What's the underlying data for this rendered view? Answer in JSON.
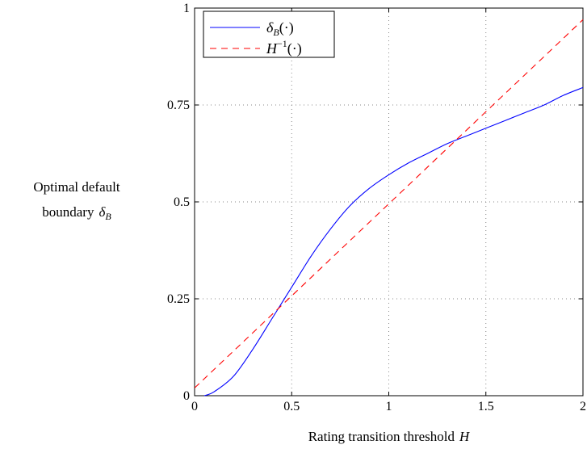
{
  "chart_data": {
    "type": "line",
    "xlabel_text": "Rating transition threshold",
    "xlabel_var": "H",
    "ylabel_line1": "Optimal default",
    "ylabel_line2_text": "boundary",
    "ylabel_line2_var": "δ",
    "ylabel_line2_sub": "B",
    "xlim": [
      0,
      2
    ],
    "ylim": [
      0,
      1
    ],
    "x_ticks": [
      0,
      0.5,
      1,
      1.5,
      2
    ],
    "x_tick_labels": [
      "0",
      "0.5",
      "1",
      "1.5",
      "2"
    ],
    "y_ticks": [
      0,
      0.25,
      0.5,
      0.75,
      1
    ],
    "y_tick_labels": [
      "0",
      "0.25",
      "0.5",
      "0.75",
      "1"
    ],
    "grid": true,
    "legend_position": "top-left",
    "series": [
      {
        "name": "δB(·)",
        "legend_main": "δ",
        "legend_sub": "B",
        "legend_tail": "(·)",
        "color": "#0000ff",
        "dash": "solid",
        "x": [
          0.05,
          0.1,
          0.2,
          0.3,
          0.4,
          0.5,
          0.6,
          0.7,
          0.8,
          0.9,
          1.0,
          1.1,
          1.2,
          1.3,
          1.4,
          1.5,
          1.6,
          1.7,
          1.8,
          1.9,
          2.0
        ],
        "y": [
          0.0,
          0.01,
          0.05,
          0.12,
          0.2,
          0.28,
          0.36,
          0.43,
          0.49,
          0.535,
          0.57,
          0.6,
          0.625,
          0.65,
          0.67,
          0.69,
          0.71,
          0.73,
          0.75,
          0.775,
          0.795
        ]
      },
      {
        "name": "H⁻¹(·)",
        "legend_main": "H",
        "legend_sup": "−1",
        "legend_tail": "(·)",
        "color": "#ff0000",
        "dash": "dashed",
        "x": [
          0,
          2
        ],
        "y": [
          0.02,
          0.97
        ]
      }
    ]
  }
}
